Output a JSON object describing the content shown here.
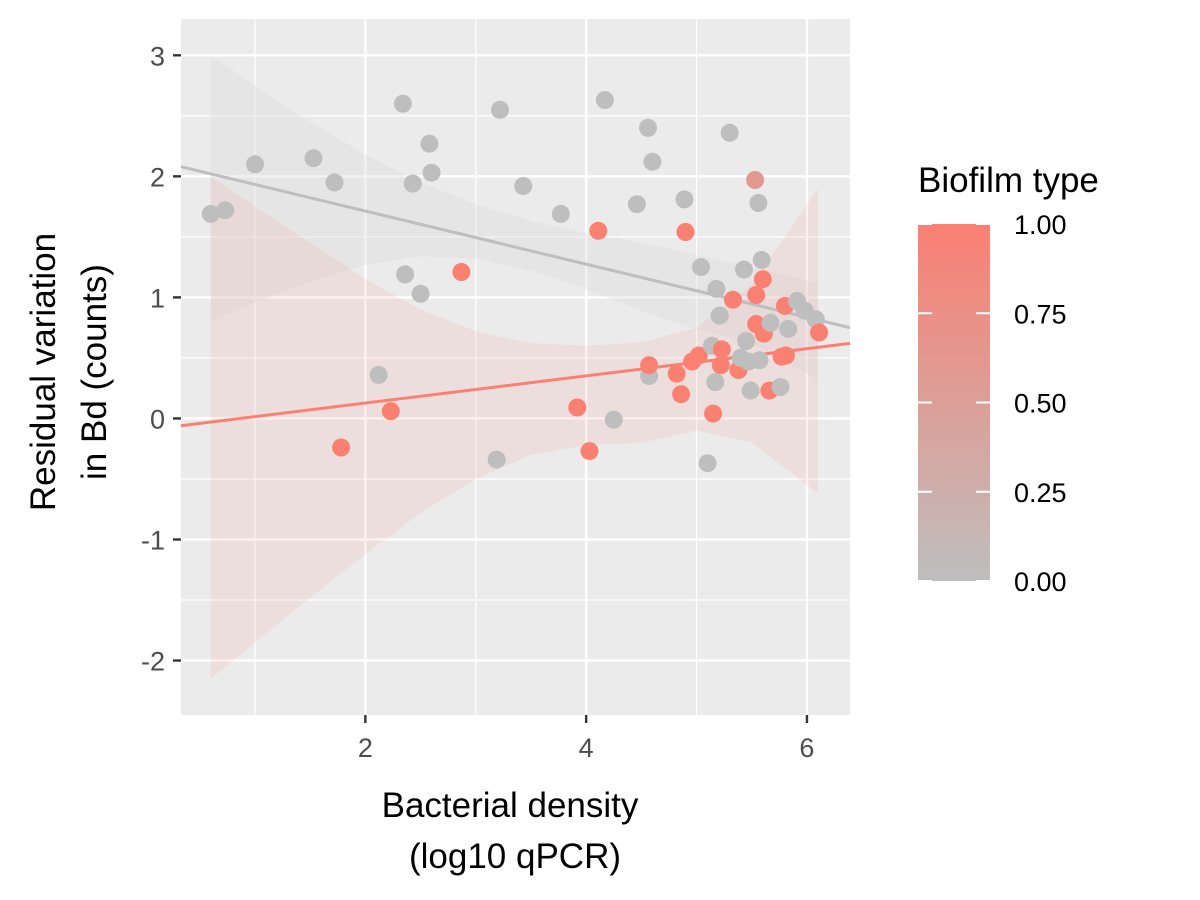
{
  "chart_data": {
    "type": "scatter",
    "title": "",
    "xlabel_lines": [
      "Bacterial density",
      "(log10 qPCR)"
    ],
    "ylabel_lines": [
      "Residual variation",
      "in Bd (counts)"
    ],
    "xlim": [
      0.33,
      6.39
    ],
    "ylim": [
      -2.45,
      3.3
    ],
    "x_ticks": [
      2,
      4,
      6
    ],
    "x_tick_labels": [
      "2",
      "4",
      "6"
    ],
    "y_ticks": [
      3,
      2,
      1,
      0,
      -1,
      -2
    ],
    "y_tick_labels": [
      "3",
      "2",
      "1",
      "0",
      "-1",
      "-2"
    ],
    "grid": true,
    "background": "#ebebeb",
    "legend": {
      "title": "Biofilm type",
      "placement": "right",
      "type": "colorbar",
      "range": [
        0,
        1
      ],
      "low_color": "#bebebe",
      "high_color": "#fa8072",
      "breaks": [
        1.0,
        0.75,
        0.5,
        0.25,
        0.0
      ],
      "labels": [
        "1.00",
        "0.75",
        "0.50",
        "0.25",
        "0.00"
      ]
    },
    "points": [
      {
        "x": 0.6,
        "y": 1.69,
        "c": 0
      },
      {
        "x": 0.73,
        "y": 1.72,
        "c": 0
      },
      {
        "x": 1.0,
        "y": 2.1,
        "c": 0
      },
      {
        "x": 1.53,
        "y": 2.15,
        "c": 0
      },
      {
        "x": 1.72,
        "y": 1.95,
        "c": 0
      },
      {
        "x": 1.78,
        "y": -0.24,
        "c": 1
      },
      {
        "x": 2.12,
        "y": 0.36,
        "c": 0
      },
      {
        "x": 2.23,
        "y": 0.06,
        "c": 1
      },
      {
        "x": 2.34,
        "y": 2.6,
        "c": 0
      },
      {
        "x": 2.36,
        "y": 1.19,
        "c": 0
      },
      {
        "x": 2.43,
        "y": 1.94,
        "c": 0
      },
      {
        "x": 2.5,
        "y": 1.03,
        "c": 0
      },
      {
        "x": 2.58,
        "y": 2.27,
        "c": 0
      },
      {
        "x": 2.6,
        "y": 2.03,
        "c": 0
      },
      {
        "x": 2.87,
        "y": 1.21,
        "c": 1
      },
      {
        "x": 3.19,
        "y": -0.34,
        "c": 0
      },
      {
        "x": 3.22,
        "y": 2.55,
        "c": 0
      },
      {
        "x": 3.43,
        "y": 1.92,
        "c": 0
      },
      {
        "x": 3.77,
        "y": 1.69,
        "c": 0
      },
      {
        "x": 3.92,
        "y": 0.09,
        "c": 1
      },
      {
        "x": 4.03,
        "y": -0.27,
        "c": 1
      },
      {
        "x": 4.11,
        "y": 1.55,
        "c": 1
      },
      {
        "x": 4.17,
        "y": 2.63,
        "c": 0
      },
      {
        "x": 4.25,
        "y": -0.01,
        "c": 0
      },
      {
        "x": 4.46,
        "y": 1.77,
        "c": 0
      },
      {
        "x": 4.56,
        "y": 2.4,
        "c": 0
      },
      {
        "x": 4.57,
        "y": 0.35,
        "c": 0
      },
      {
        "x": 4.57,
        "y": 0.44,
        "c": 1
      },
      {
        "x": 4.6,
        "y": 2.12,
        "c": 0
      },
      {
        "x": 4.82,
        "y": 0.37,
        "c": 1
      },
      {
        "x": 4.86,
        "y": 0.2,
        "c": 1
      },
      {
        "x": 4.89,
        "y": 1.81,
        "c": 0
      },
      {
        "x": 4.9,
        "y": 1.54,
        "c": 1
      },
      {
        "x": 4.96,
        "y": 0.47,
        "c": 1
      },
      {
        "x": 5.02,
        "y": 0.52,
        "c": 1
      },
      {
        "x": 5.04,
        "y": 1.25,
        "c": 0
      },
      {
        "x": 5.1,
        "y": -0.37,
        "c": 0
      },
      {
        "x": 5.14,
        "y": 0.6,
        "c": 0
      },
      {
        "x": 5.15,
        "y": 0.04,
        "c": 1
      },
      {
        "x": 5.17,
        "y": 0.3,
        "c": 0
      },
      {
        "x": 5.18,
        "y": 1.07,
        "c": 0
      },
      {
        "x": 5.21,
        "y": 0.85,
        "c": 0
      },
      {
        "x": 5.22,
        "y": 0.44,
        "c": 1
      },
      {
        "x": 5.23,
        "y": 0.57,
        "c": 1
      },
      {
        "x": 5.3,
        "y": 2.36,
        "c": 0
      },
      {
        "x": 5.33,
        "y": 0.98,
        "c": 1
      },
      {
        "x": 5.38,
        "y": 0.4,
        "c": 1
      },
      {
        "x": 5.4,
        "y": 0.5,
        "c": 0
      },
      {
        "x": 5.43,
        "y": 1.23,
        "c": 0
      },
      {
        "x": 5.45,
        "y": 0.64,
        "c": 0
      },
      {
        "x": 5.47,
        "y": 0.47,
        "c": 0
      },
      {
        "x": 5.49,
        "y": 0.23,
        "c": 0
      },
      {
        "x": 5.53,
        "y": 1.97,
        "c": 0.6
      },
      {
        "x": 5.54,
        "y": 1.02,
        "c": 1
      },
      {
        "x": 5.54,
        "y": 0.78,
        "c": 1
      },
      {
        "x": 5.56,
        "y": 1.78,
        "c": 0
      },
      {
        "x": 5.57,
        "y": 0.48,
        "c": 0
      },
      {
        "x": 5.59,
        "y": 1.31,
        "c": 0
      },
      {
        "x": 5.6,
        "y": 1.15,
        "c": 1
      },
      {
        "x": 5.61,
        "y": 0.7,
        "c": 1
      },
      {
        "x": 5.66,
        "y": 0.23,
        "c": 1
      },
      {
        "x": 5.67,
        "y": 0.79,
        "c": 0
      },
      {
        "x": 5.76,
        "y": 0.26,
        "c": 0
      },
      {
        "x": 5.77,
        "y": 0.51,
        "c": 1
      },
      {
        "x": 5.8,
        "y": 0.93,
        "c": 1
      },
      {
        "x": 5.81,
        "y": 0.52,
        "c": 1
      },
      {
        "x": 5.83,
        "y": 0.74,
        "c": 0
      },
      {
        "x": 5.91,
        "y": 0.97,
        "c": 0
      },
      {
        "x": 5.98,
        "y": 0.89,
        "c": 0
      },
      {
        "x": 6.08,
        "y": 0.82,
        "c": 0
      },
      {
        "x": 6.11,
        "y": 0.71,
        "c": 1
      }
    ],
    "trend_lines": [
      {
        "c": 0,
        "color": "#bebebe",
        "x": [
          0.33,
          6.39
        ],
        "y": [
          2.08,
          0.75
        ]
      },
      {
        "c": 1,
        "color": "#fa8072",
        "x": [
          0.33,
          6.39
        ],
        "y": [
          -0.06,
          0.62
        ]
      }
    ],
    "confidence_bands": [
      {
        "c": 0,
        "color": "#d9d9d9",
        "x": [
          0.6,
          1.0,
          1.5,
          2.0,
          2.5,
          3.0,
          3.5,
          4.0,
          4.5,
          5.0,
          5.5,
          6.1
        ],
        "upper": [
          3.0,
          2.75,
          2.45,
          2.18,
          1.95,
          1.77,
          1.63,
          1.53,
          1.45,
          1.35,
          1.25,
          1.12
        ],
        "lower": [
          0.8,
          0.96,
          1.13,
          1.27,
          1.34,
          1.32,
          1.22,
          1.07,
          0.89,
          0.74,
          0.62,
          0.32
        ]
      },
      {
        "c": 1,
        "color": "#fa8072",
        "x": [
          0.6,
          1.0,
          1.5,
          2.0,
          2.5,
          3.0,
          3.5,
          4.0,
          4.5,
          5.0,
          5.5,
          6.1
        ],
        "upper": [
          2.0,
          1.75,
          1.45,
          1.15,
          0.9,
          0.72,
          0.62,
          0.6,
          0.63,
          0.75,
          1.1,
          1.9
        ],
        "lower": [
          -2.15,
          -1.85,
          -1.48,
          -1.12,
          -0.78,
          -0.5,
          -0.3,
          -0.22,
          -0.2,
          -0.1,
          -0.2,
          -0.62
        ]
      }
    ]
  }
}
